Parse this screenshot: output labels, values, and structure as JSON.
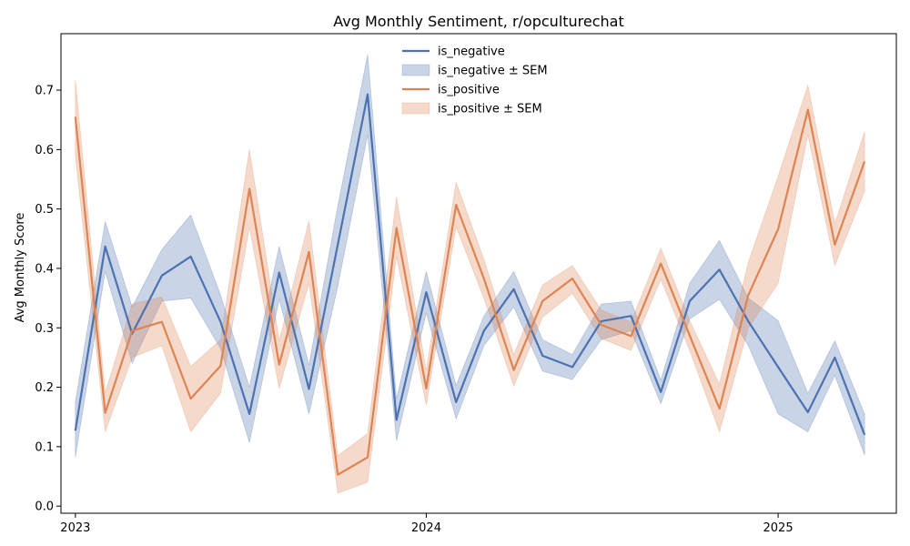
{
  "chart_data": {
    "type": "line",
    "title": "Avg Monthly Sentiment, r/opculturechat",
    "xlabel": "",
    "ylabel": "Avg Monthly Score",
    "ylim": [
      -0.012,
      0.795
    ],
    "xlim": [
      "2022-12-17",
      "2025-05-04"
    ],
    "yticks": [
      0.0,
      0.1,
      0.2,
      0.3,
      0.4,
      0.5,
      0.6,
      0.7
    ],
    "ytick_labels": [
      "0.0",
      "0.1",
      "0.2",
      "0.3",
      "0.4",
      "0.5",
      "0.6",
      "0.7"
    ],
    "xticks": [
      "2023-01-01",
      "2024-01-01",
      "2025-01-01"
    ],
    "xtick_labels": [
      "2023",
      "2024",
      "2025"
    ],
    "grid": false,
    "legend_position": "top-center",
    "x": [
      "2023-01-01",
      "2023-02-01",
      "2023-03-01",
      "2023-04-01",
      "2023-05-01",
      "2023-06-01",
      "2023-07-01",
      "2023-08-01",
      "2023-09-01",
      "2023-10-01",
      "2023-11-01",
      "2023-12-01",
      "2024-01-01",
      "2024-02-01",
      "2024-03-01",
      "2024-04-01",
      "2024-05-01",
      "2024-06-01",
      "2024-07-01",
      "2024-08-01",
      "2024-09-01",
      "2024-10-01",
      "2024-11-01",
      "2024-12-01",
      "2025-01-01",
      "2025-02-01",
      "2025-03-01",
      "2025-04-01"
    ],
    "series": [
      {
        "name": "is_negative",
        "band_name": "is_negative ± SEM",
        "color": "#4c72b0",
        "values": [
          0.127,
          0.437,
          0.29,
          0.388,
          0.42,
          0.31,
          0.155,
          0.393,
          0.197,
          0.44,
          0.693,
          0.145,
          0.36,
          0.175,
          0.295,
          0.365,
          0.253,
          0.234,
          0.311,
          0.32,
          0.192,
          0.345,
          0.398,
          0.311,
          0.234,
          0.158,
          0.25,
          0.12
        ],
        "lower": [
          0.082,
          0.395,
          0.24,
          0.345,
          0.35,
          0.265,
          0.107,
          0.348,
          0.155,
          0.37,
          0.625,
          0.11,
          0.325,
          0.147,
          0.27,
          0.335,
          0.227,
          0.213,
          0.28,
          0.295,
          0.172,
          0.315,
          0.348,
          0.27,
          0.155,
          0.125,
          0.22,
          0.086
        ],
        "upper": [
          0.175,
          0.479,
          0.335,
          0.432,
          0.49,
          0.355,
          0.2,
          0.437,
          0.237,
          0.505,
          0.76,
          0.18,
          0.395,
          0.203,
          0.32,
          0.395,
          0.28,
          0.255,
          0.34,
          0.345,
          0.212,
          0.375,
          0.447,
          0.35,
          0.312,
          0.19,
          0.278,
          0.155
        ]
      },
      {
        "name": "is_positive",
        "band_name": "is_positive ± SEM",
        "color": "#dd8452",
        "values": [
          0.655,
          0.157,
          0.295,
          0.31,
          0.181,
          0.236,
          0.534,
          0.238,
          0.428,
          0.053,
          0.082,
          0.468,
          0.198,
          0.507,
          0.383,
          0.229,
          0.345,
          0.383,
          0.305,
          0.286,
          0.408,
          0.287,
          0.164,
          0.355,
          0.466,
          0.667,
          0.44,
          0.58
        ],
        "lower": [
          0.59,
          0.125,
          0.25,
          0.27,
          0.125,
          0.19,
          0.47,
          0.198,
          0.375,
          0.022,
          0.04,
          0.42,
          0.17,
          0.47,
          0.35,
          0.202,
          0.318,
          0.358,
          0.282,
          0.262,
          0.382,
          0.262,
          0.125,
          0.3,
          0.375,
          0.625,
          0.405,
          0.53
        ],
        "upper": [
          0.718,
          0.19,
          0.34,
          0.352,
          0.235,
          0.28,
          0.6,
          0.278,
          0.48,
          0.085,
          0.122,
          0.52,
          0.228,
          0.545,
          0.415,
          0.255,
          0.372,
          0.405,
          0.33,
          0.31,
          0.434,
          0.312,
          0.205,
          0.41,
          0.555,
          0.708,
          0.475,
          0.63
        ]
      }
    ]
  }
}
